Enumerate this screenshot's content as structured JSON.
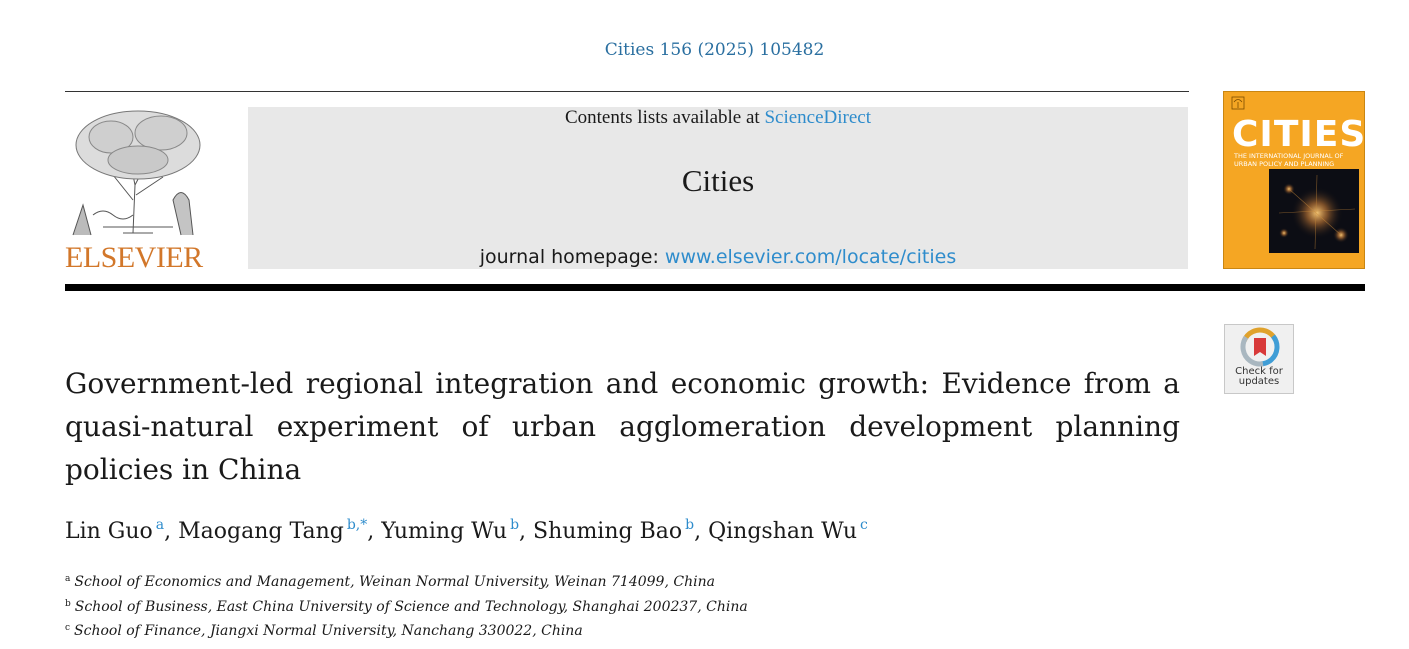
{
  "citation": "Cities 156 (2025) 105482",
  "publisher": {
    "name": "ELSEVIER"
  },
  "banner": {
    "contents_prefix": "Contents lists available at ",
    "contents_link": "ScienceDirect",
    "journal": "Cities",
    "homepage_prefix": "journal homepage: ",
    "homepage_url": "www.elsevier.com/locate/cities"
  },
  "cover": {
    "title": "CITIES",
    "subtitle": "THE INTERNATIONAL JOURNAL OF URBAN POLICY AND PLANNING",
    "color": "#f5a623"
  },
  "check_updates": {
    "label_1": "Check for",
    "label_2": "updates"
  },
  "article": {
    "title": "Government-led regional integration and economic growth: Evidence from a quasi-natural experiment of urban agglomeration development planning policies in China",
    "authors": [
      {
        "name": "Lin Guo",
        "aff": "a"
      },
      {
        "name": "Maogang Tang",
        "aff": "b,*"
      },
      {
        "name": "Yuming Wu",
        "aff": "b"
      },
      {
        "name": "Shuming Bao",
        "aff": "b"
      },
      {
        "name": "Qingshan Wu",
        "aff": "c"
      }
    ],
    "affiliations": [
      {
        "key": "a",
        "text": "School of Economics and Management, Weinan Normal University, Weinan 714099, China"
      },
      {
        "key": "b",
        "text": "School of Business, East China University of Science and Technology, Shanghai 200237, China"
      },
      {
        "key": "c",
        "text": "School of Finance, Jiangxi Normal University, Nanchang 330022, China"
      }
    ]
  },
  "colors": {
    "link": "#2e8ccc",
    "citation": "#2a6fa0",
    "elsevier_orange": "#d2772a"
  }
}
